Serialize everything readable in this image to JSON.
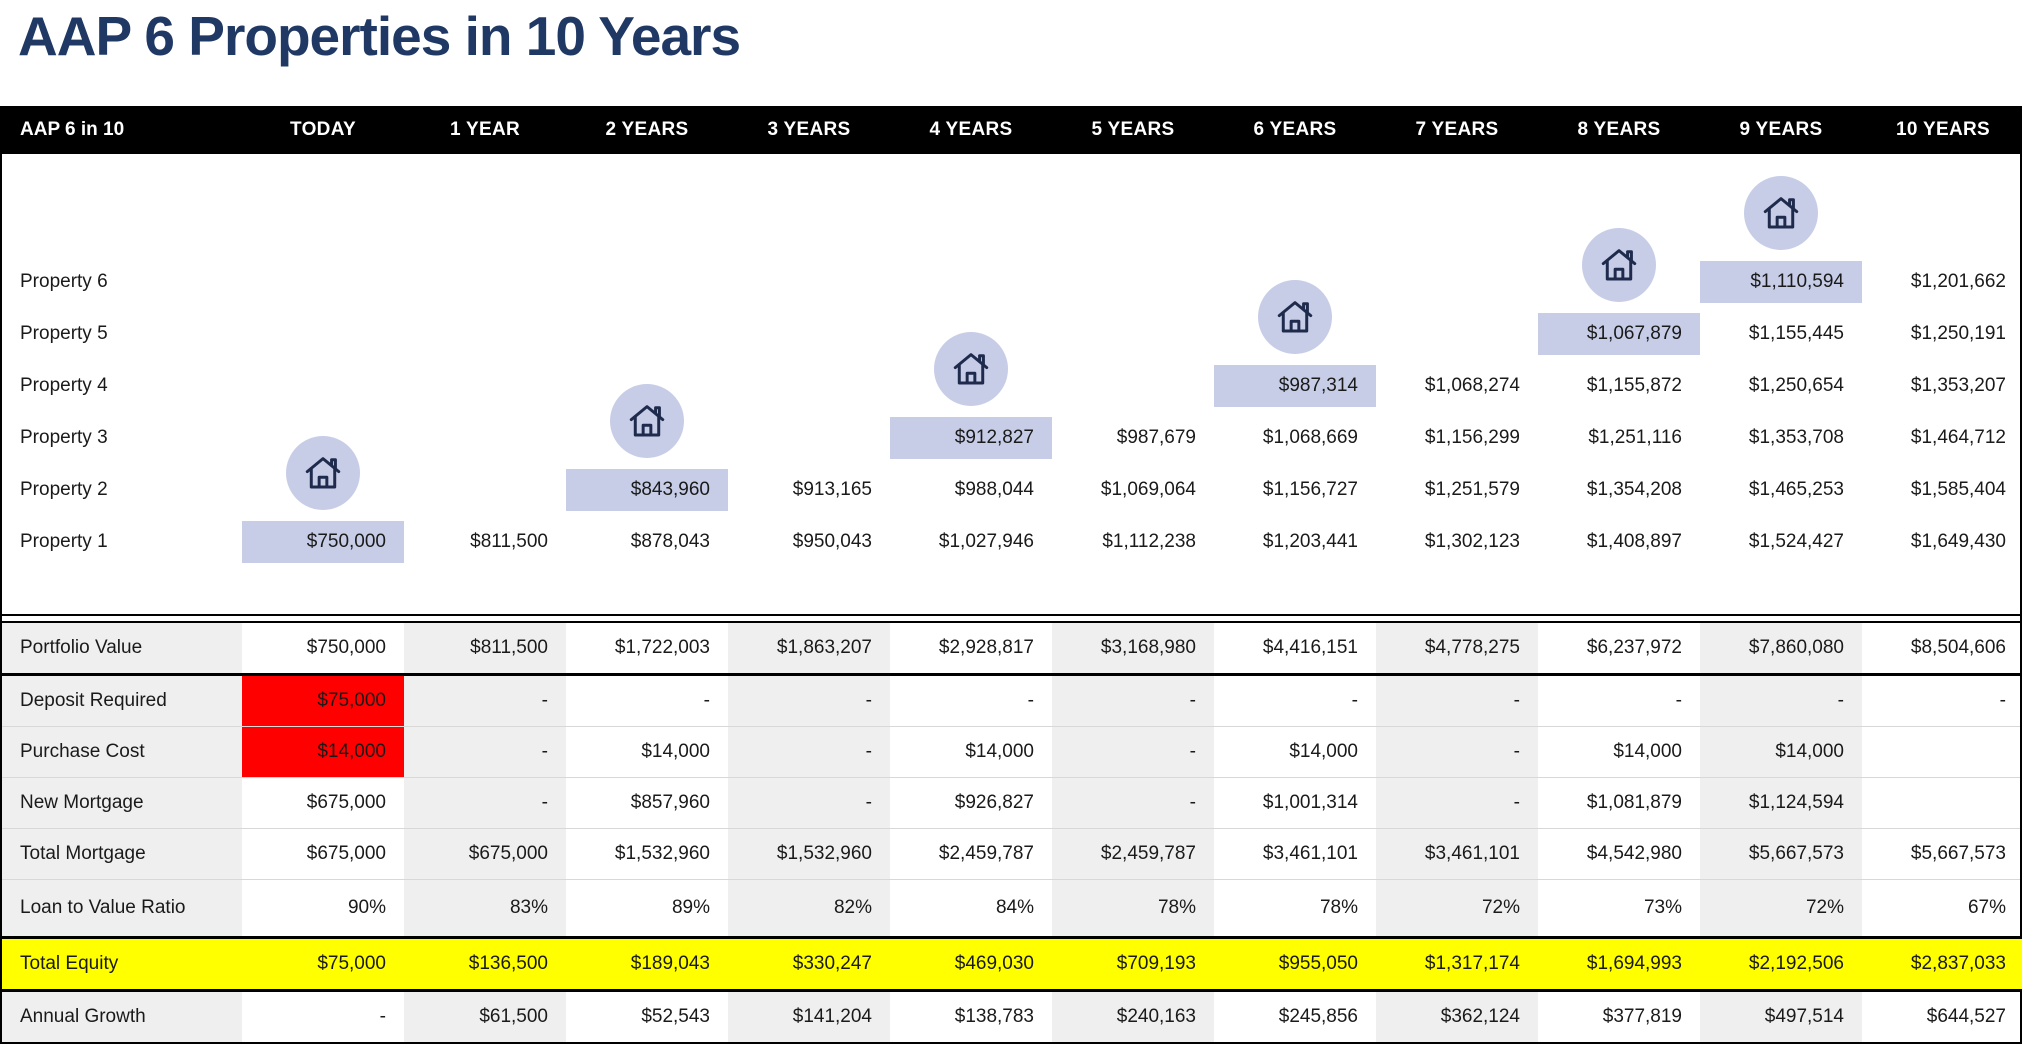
{
  "title": "AAP 6 Properties in 10 Years",
  "colors": {
    "title_text": "#1F3864",
    "header_bg": "#000000",
    "header_text": "#FFFFFF",
    "highlight_cell": "#C7CDE7",
    "icon_circle": "#C7CDE7",
    "icon_glyph": "#1F2B4D",
    "alert_red": "#FF0000",
    "equity_yellow": "#FFFF00",
    "column_stripe": "#EFEFEF"
  },
  "table": {
    "corner_label": "AAP 6 in 10",
    "columns": [
      "TODAY",
      "1 YEAR",
      "2 YEARS",
      "3 YEARS",
      "4 YEARS",
      "5 YEARS",
      "6 YEARS",
      "7 YEARS",
      "8 YEARS",
      "9 YEARS",
      "10 YEARS"
    ],
    "properties": [
      {
        "label": "Property 1",
        "start_col": 0,
        "values": [
          "$750,000",
          "$811,500",
          "$878,043",
          "$950,043",
          "$1,027,946",
          "$1,112,238",
          "$1,203,441",
          "$1,302,123",
          "$1,408,897",
          "$1,524,427",
          "$1,649,430"
        ]
      },
      {
        "label": "Property 2",
        "start_col": 2,
        "values": [
          "$843,960",
          "$913,165",
          "$988,044",
          "$1,069,064",
          "$1,156,727",
          "$1,251,579",
          "$1,354,208",
          "$1,465,253",
          "$1,585,404"
        ]
      },
      {
        "label": "Property 3",
        "start_col": 4,
        "values": [
          "$912,827",
          "$987,679",
          "$1,068,669",
          "$1,156,299",
          "$1,251,116",
          "$1,353,708",
          "$1,464,712"
        ]
      },
      {
        "label": "Property 4",
        "start_col": 6,
        "values": [
          "$987,314",
          "$1,068,274",
          "$1,155,872",
          "$1,250,654",
          "$1,353,207"
        ]
      },
      {
        "label": "Property 5",
        "start_col": 8,
        "values": [
          "$1,067,879",
          "$1,155,445",
          "$1,250,191"
        ]
      },
      {
        "label": "Property 6",
        "start_col": 9,
        "values": [
          "$1,110,594",
          "$1,201,662"
        ]
      }
    ],
    "summary_rows": [
      {
        "label": "Portfolio Value",
        "values": [
          "$750,000",
          "$811,500",
          "$1,722,003",
          "$1,863,207",
          "$2,928,817",
          "$3,168,980",
          "$4,416,151",
          "$4,778,275",
          "$6,237,972",
          "$7,860,080",
          "$8,504,606"
        ]
      },
      {
        "label": "Deposit Required",
        "first_cell_color": "red",
        "values": [
          "$75,000",
          "-",
          "-",
          "-",
          "-",
          "-",
          "-",
          "-",
          "-",
          "-",
          "-"
        ]
      },
      {
        "label": "Purchase Cost",
        "first_cell_color": "red",
        "values": [
          "$14,000",
          "-",
          "$14,000",
          "-",
          "$14,000",
          "-",
          "$14,000",
          "-",
          "$14,000",
          "$14,000",
          ""
        ]
      },
      {
        "label": "New Mortgage",
        "values": [
          "$675,000",
          "-",
          "$857,960",
          "-",
          "$926,827",
          "-",
          "$1,001,314",
          "-",
          "$1,081,879",
          "$1,124,594",
          ""
        ]
      },
      {
        "label": "Total Mortgage",
        "values": [
          "$675,000",
          "$675,000",
          "$1,532,960",
          "$1,532,960",
          "$2,459,787",
          "$2,459,787",
          "$3,461,101",
          "$3,461,101",
          "$4,542,980",
          "$5,667,573",
          "$5,667,573"
        ]
      },
      {
        "label": "Loan to Value Ratio",
        "values": [
          "90%",
          "83%",
          "89%",
          "82%",
          "84%",
          "78%",
          "78%",
          "72%",
          "73%",
          "72%",
          "67%"
        ]
      },
      {
        "label": "Total Equity",
        "row_color": "yellow",
        "values": [
          "$75,000",
          "$136,500",
          "$189,043",
          "$330,247",
          "$469,030",
          "$709,193",
          "$955,050",
          "$1,317,174",
          "$1,694,993",
          "$2,192,506",
          "$2,837,033"
        ]
      },
      {
        "label": "Annual Growth",
        "values": [
          "-",
          "$61,500",
          "$52,543",
          "$141,204",
          "$138,783",
          "$240,163",
          "$245,856",
          "$362,124",
          "$377,819",
          "$497,514",
          "$644,527"
        ]
      }
    ]
  },
  "chart_data": {
    "type": "table",
    "title": "AAP 6 Properties in 10 Years",
    "columns": [
      "TODAY",
      "1 YEAR",
      "2 YEARS",
      "3 YEARS",
      "4 YEARS",
      "5 YEARS",
      "6 YEARS",
      "7 YEARS",
      "8 YEARS",
      "9 YEARS",
      "10 YEARS"
    ],
    "series": [
      {
        "name": "Property 1",
        "start_column": "TODAY",
        "values": [
          750000,
          811500,
          878043,
          950043,
          1027946,
          1112238,
          1203441,
          1302123,
          1408897,
          1524427,
          1649430
        ]
      },
      {
        "name": "Property 2",
        "start_column": "2 YEARS",
        "values": [
          843960,
          913165,
          988044,
          1069064,
          1156727,
          1251579,
          1354208,
          1465253,
          1585404
        ]
      },
      {
        "name": "Property 3",
        "start_column": "4 YEARS",
        "values": [
          912827,
          987679,
          1068669,
          1156299,
          1251116,
          1353708,
          1464712
        ]
      },
      {
        "name": "Property 4",
        "start_column": "6 YEARS",
        "values": [
          987314,
          1068274,
          1155872,
          1250654,
          1353207
        ]
      },
      {
        "name": "Property 5",
        "start_column": "8 YEARS",
        "values": [
          1067879,
          1155445,
          1250191
        ]
      },
      {
        "name": "Property 6",
        "start_column": "9 YEARS",
        "values": [
          1110594,
          1201662
        ]
      }
    ],
    "summary": {
      "Portfolio Value": [
        750000,
        811500,
        1722003,
        1863207,
        2928817,
        3168980,
        4416151,
        4778275,
        6237972,
        7860080,
        8504606
      ],
      "Deposit Required": [
        75000,
        null,
        null,
        null,
        null,
        null,
        null,
        null,
        null,
        null,
        null
      ],
      "Purchase Cost": [
        14000,
        null,
        14000,
        null,
        14000,
        null,
        14000,
        null,
        14000,
        14000,
        null
      ],
      "New Mortgage": [
        675000,
        null,
        857960,
        null,
        926827,
        null,
        1001314,
        null,
        1081879,
        1124594,
        null
      ],
      "Total Mortgage": [
        675000,
        675000,
        1532960,
        1532960,
        2459787,
        2459787,
        3461101,
        3461101,
        4542980,
        5667573,
        5667573
      ],
      "Loan to Value Ratio": [
        "90%",
        "83%",
        "89%",
        "82%",
        "84%",
        "78%",
        "78%",
        "72%",
        "73%",
        "72%",
        "67%"
      ],
      "Total Equity": [
        75000,
        136500,
        189043,
        330247,
        469030,
        709193,
        955050,
        1317174,
        1694993,
        2192506,
        2837033
      ],
      "Annual Growth": [
        null,
        61500,
        52543,
        141204,
        138783,
        240163,
        245856,
        362124,
        377819,
        497514,
        644527
      ]
    }
  }
}
